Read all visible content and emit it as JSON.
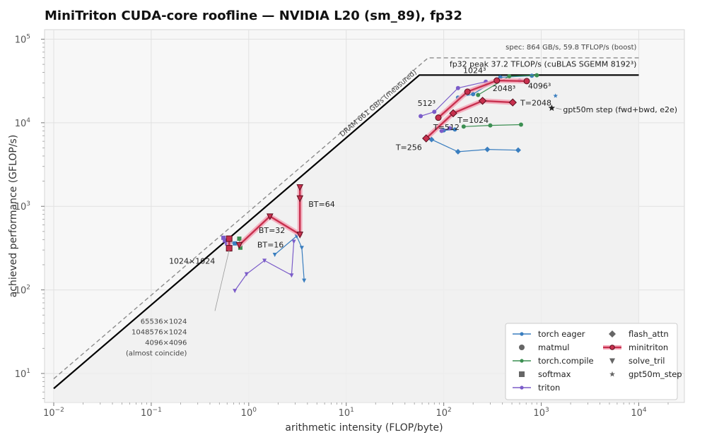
{
  "chart_data": {
    "type": "scatter",
    "title": "MiniTriton CUDA-core roofline — NVIDIA L20 (sm_89), fp32",
    "xlabel": "arithmetic intensity (FLOP/byte)",
    "ylabel": "achieved performance (GFLOP/s)",
    "xscale": "log",
    "yscale": "log",
    "xlim": [
      0.01,
      20000
    ],
    "ylim": [
      4.5,
      130000
    ],
    "xticks": [
      {
        "v": 0.01,
        "b": "10",
        "e": "−2"
      },
      {
        "v": 0.1,
        "b": "10",
        "e": "−1"
      },
      {
        "v": 1,
        "b": "10",
        "e": "0"
      },
      {
        "v": 10,
        "b": "10",
        "e": "1"
      },
      {
        "v": 100,
        "b": "10",
        "e": "2"
      },
      {
        "v": 1000,
        "b": "10",
        "e": "3"
      },
      {
        "v": 10000,
        "b": "10",
        "e": "4"
      }
    ],
    "yticks": [
      {
        "v": 10,
        "b": "10",
        "e": "1"
      },
      {
        "v": 100,
        "b": "10",
        "e": "2"
      },
      {
        "v": 1000,
        "b": "10",
        "e": "3"
      },
      {
        "v": 10000,
        "b": "10",
        "e": "4"
      },
      {
        "v": 100000,
        "b": "10",
        "e": "5"
      }
    ],
    "grid": true,
    "legend_position": "lower-right",
    "colors": {
      "torch_eager": "#3a7ebf",
      "torch_compile": "#3c8f52",
      "triton": "#7b5cc9",
      "minitriton": "#c8304e",
      "minitriton_glow": "#f3a7b9",
      "roof": "#000000",
      "spec": "#8c8c8c",
      "marker_gray": "#666666",
      "star": "#222222"
    },
    "roofline": {
      "measured_bw_GBps": 661,
      "peak_GFLOPs": 37200,
      "x_range": [
        0.01,
        10000
      ],
      "label_bw": "DRAM 661 GB/s (measured)",
      "label_peak": "fp32 peak 37.2 TFLOP/s (cuBLAS SGEMM 8192³)"
    },
    "spec_roof": {
      "bw_GBps": 864,
      "peak_GFLOPs": 59800,
      "x_range": [
        0.01,
        10000
      ],
      "label": "spec: 864 GB/s, 59.8 TFLOP/s (boost)"
    },
    "series": [
      {
        "name": "torch eager",
        "kind": "matmul",
        "x": [
          75,
          140,
          280,
          580
        ],
        "y": [
          6300,
          4500,
          4800,
          4700
        ]
      },
      {
        "name": "torch eager",
        "kind": "matmul_top",
        "x": [
          140,
          200,
          380,
          800
        ],
        "y": [
          20000,
          22000,
          35000,
          36500
        ]
      },
      {
        "name": "torch eager",
        "kind": "softmax",
        "x": [
          0.62,
          0.72
        ],
        "y": [
          370,
          360
        ]
      },
      {
        "name": "torch eager",
        "kind": "solve_tril",
        "x": [
          1.85,
          3.1,
          3.5,
          3.7
        ],
        "y": [
          265,
          440,
          320,
          130
        ]
      },
      {
        "name": "torch eager",
        "kind": "matmul_mid",
        "x": [
          100,
          130
        ],
        "y": [
          8100,
          8300
        ]
      },
      {
        "name": "torch.compile",
        "kind": "matmul",
        "x": [
          160,
          300,
          620
        ],
        "y": [
          9000,
          9300,
          9500
        ]
      },
      {
        "name": "torch.compile",
        "kind": "matmul_top",
        "x": [
          225,
          470,
          900
        ],
        "y": [
          21500,
          36000,
          37000
        ]
      },
      {
        "name": "torch.compile",
        "kind": "softmax",
        "x": [
          0.8,
          0.82
        ],
        "y": [
          410,
          320
        ]
      },
      {
        "name": "triton",
        "kind": "matmul",
        "x": [
          58,
          80,
          140,
          270,
          600
        ],
        "y": [
          12000,
          13500,
          26000,
          31000,
          32000
        ]
      },
      {
        "name": "triton",
        "kind": "matmul2",
        "x": [
          95,
          115
        ],
        "y": [
          8000,
          8600
        ]
      },
      {
        "name": "triton",
        "kind": "softmax",
        "x": [
          0.55,
          0.57,
          0.6
        ],
        "y": [
          420,
          390,
          360
        ]
      },
      {
        "name": "triton",
        "kind": "solve_tril",
        "x": [
          0.72,
          0.95,
          1.45,
          2.75,
          2.9
        ],
        "y": [
          98,
          155,
          225,
          150,
          380
        ]
      }
    ],
    "minitriton": {
      "softmax": {
        "x": [
          0.63,
          0.63
        ],
        "y": [
          410,
          315
        ]
      },
      "solve_tril": {
        "x": [
          0.8,
          1.65,
          3.35,
          3.35,
          3.35
        ],
        "y": [
          345,
          760,
          460,
          1250,
          1700
        ]
      },
      "matmul_path": {
        "x": [
          88,
          175,
          350,
          710
        ],
        "y": [
          11500,
          23500,
          32000,
          31500
        ]
      },
      "flash_path": {
        "x": [
          66,
          125,
          250,
          510
        ],
        "y": [
          6500,
          13000,
          18300,
          17500
        ]
      }
    },
    "gpt50m_star": {
      "x": 1280,
      "y": 15000,
      "label": "gpt50m step (fwd+bwd, e2e)"
    },
    "gpt50m_star_small": {
      "x": 1400,
      "y": 21000
    },
    "annotations": {
      "bt16": "BT=16",
      "bt32": "BT=32",
      "bt64": "BT=64",
      "t256": "T=256",
      "t512": "T=512",
      "t1024": "T=1024",
      "t2048": "T=2048",
      "m512": "512³",
      "m1024": "1024³",
      "m2048": "2048³",
      "m4096": "4096³",
      "s1024": "1024×1024",
      "s65536": "65536×1024",
      "s1048576": "1048576×1024",
      "s4096": "4096×4096",
      "coincide": "(almost coincide)"
    },
    "legend": [
      {
        "label": "torch eager",
        "kind": "line",
        "color_key": "torch_eager"
      },
      {
        "label": "matmul",
        "kind": "circle",
        "color_key": "marker_gray"
      },
      {
        "label": "torch.compile",
        "kind": "line",
        "color_key": "torch_compile"
      },
      {
        "label": "softmax",
        "kind": "square",
        "color_key": "marker_gray"
      },
      {
        "label": "triton",
        "kind": "line",
        "color_key": "triton"
      },
      {
        "label": "flash_attn",
        "kind": "diamond",
        "color_key": "marker_gray"
      },
      {
        "label": "minitriton",
        "kind": "minitriton",
        "color_key": "minitriton"
      },
      {
        "label": "solve_tril",
        "kind": "triangle",
        "color_key": "marker_gray"
      },
      {
        "label": "gpt50m_step",
        "kind": "star",
        "color_key": "marker_gray"
      }
    ]
  }
}
